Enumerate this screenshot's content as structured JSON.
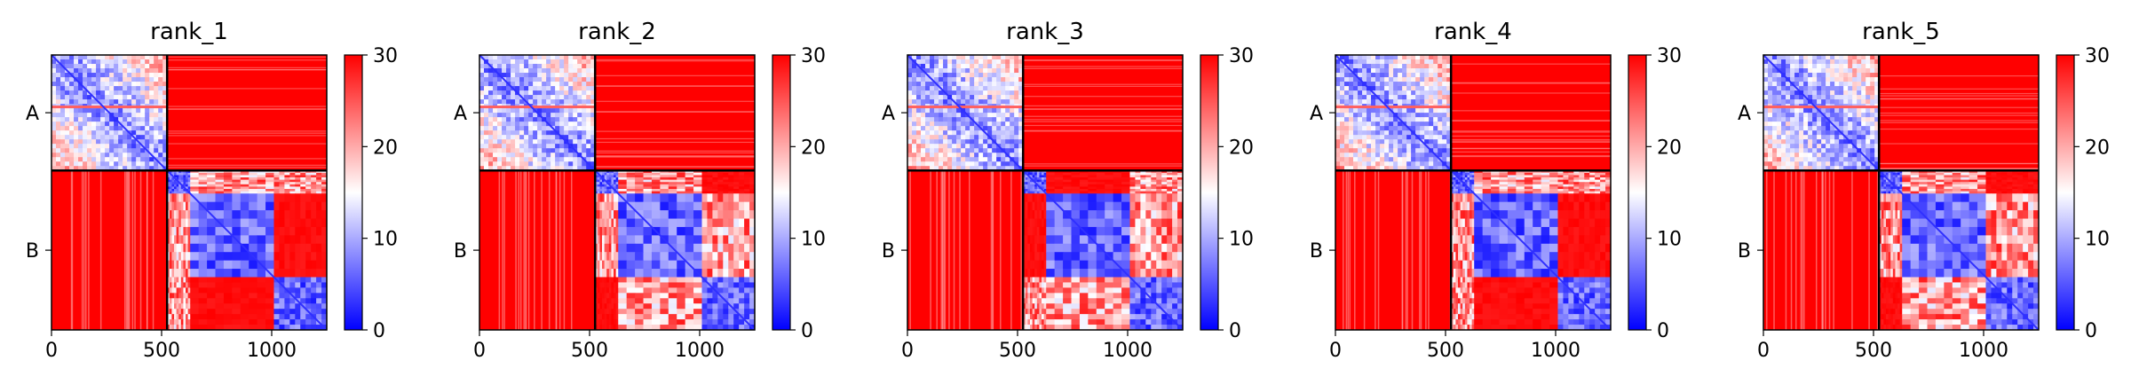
{
  "chart_data": {
    "type": "heatmap",
    "colormap": {
      "name": "bwr",
      "low": "#0000ff",
      "mid": "#ffffff",
      "high": "#ff0000"
    },
    "vmin": 0,
    "vmax": 30,
    "colorbar_ticks": [
      "0",
      "10",
      "20",
      "30"
    ],
    "x_ticks": [
      0,
      500,
      1000
    ],
    "x_tick_labels": [
      "0",
      "500",
      "1000"
    ],
    "xlim": [
      0,
      1250
    ],
    "ylim": [
      1250,
      0
    ],
    "chain_labels": [
      "A",
      "B"
    ],
    "chain_boundary": 525,
    "grid": false,
    "panels": [
      {
        "title": "rank_1"
      },
      {
        "title": "rank_2"
      },
      {
        "title": "rank_3"
      },
      {
        "title": "rank_4"
      },
      {
        "title": "rank_5"
      }
    ]
  },
  "colors": {
    "high_red": "#ff0000",
    "mid_white": "#ffffff",
    "low_blue": "#0000ff",
    "axis": "#000000"
  }
}
